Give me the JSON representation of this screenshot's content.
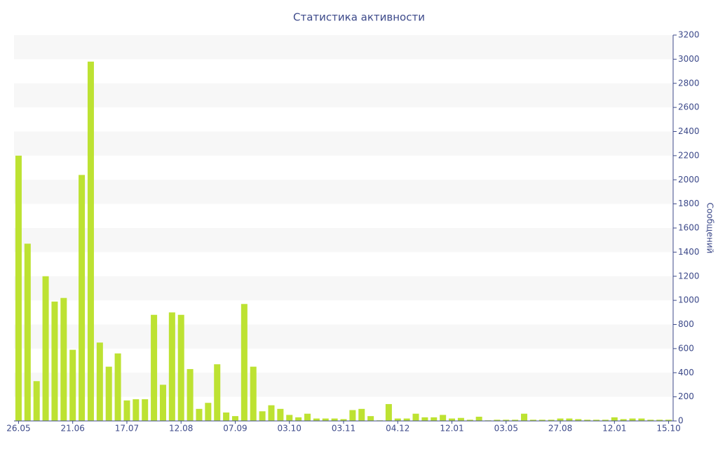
{
  "chart_data": {
    "type": "bar",
    "title": "Статистика активности",
    "y_label": "Сообщений",
    "categories": [
      "26.05",
      null,
      null,
      null,
      null,
      null,
      "21.06",
      null,
      null,
      null,
      null,
      null,
      "17.07",
      null,
      null,
      null,
      null,
      null,
      "12.08",
      null,
      null,
      null,
      null,
      null,
      "07.09",
      null,
      null,
      null,
      null,
      null,
      "03.10",
      null,
      null,
      null,
      null,
      null,
      "03.11",
      null,
      null,
      null,
      null,
      null,
      "04.12",
      null,
      null,
      null,
      null,
      null,
      "12.01",
      null,
      null,
      null,
      null,
      null,
      "03.05",
      null,
      null,
      null,
      null,
      null,
      "27.08",
      null,
      null,
      null,
      null,
      null,
      "12.01",
      null,
      null,
      null,
      null,
      null,
      "15.10"
    ],
    "values": [
      2200,
      1470,
      330,
      1200,
      990,
      1020,
      590,
      2040,
      2980,
      650,
      450,
      560,
      170,
      180,
      180,
      880,
      300,
      900,
      880,
      430,
      100,
      150,
      470,
      70,
      40,
      970,
      450,
      80,
      130,
      100,
      50,
      30,
      60,
      20,
      20,
      20,
      15,
      90,
      100,
      40,
      5,
      140,
      20,
      20,
      60,
      30,
      30,
      50,
      20,
      25,
      10,
      35,
      5,
      10,
      10,
      10,
      60,
      10,
      10,
      10,
      20,
      20,
      15,
      10,
      10,
      10,
      30,
      15,
      20,
      20,
      10,
      10,
      10
    ],
    "color": "#bde232",
    "ylim": [
      0,
      3200
    ],
    "yticks": [
      0,
      200,
      400,
      600,
      800,
      1000,
      1200,
      1400,
      1600,
      1800,
      2000,
      2200,
      2400,
      2600,
      2800,
      3000,
      3200
    ],
    "grid": "bands",
    "grid_color": "#f7f7f7",
    "y_axis_side": "right"
  }
}
